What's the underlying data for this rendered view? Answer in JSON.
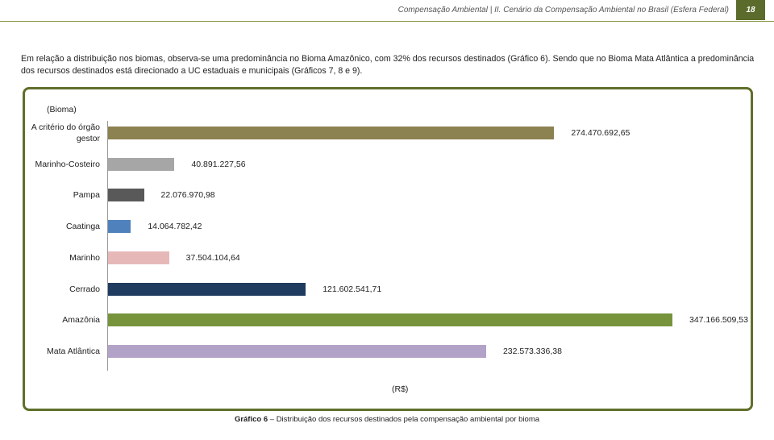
{
  "header": {
    "title": "Compensação Ambiental | II. Cenário da Compensação Ambiental no Brasil (Esfera Federal)",
    "page": "18"
  },
  "paragraph": "Em relação a distribuição nos biomas, observa-se uma predominância no Bioma Amazônico, com 32% dos recursos destinados (Gráfico 6). Sendo que no Bioma Mata Atlântica a predominância dos recursos destinados está direcionado a UC estaduais e municipais (Gráficos 7, 8 e 9).",
  "chart_data": {
    "type": "bar",
    "orientation": "horizontal",
    "y_label": "(Bioma)",
    "x_label": "(R$)",
    "categories": [
      "A critério do órgão gestor",
      "Marinho-Costeiro",
      "Pampa",
      "Caatinga",
      "Marinho",
      "Cerrado",
      "Amazônia",
      "Mata Atlântica"
    ],
    "values": [
      274470692.65,
      40891227.56,
      22076970.98,
      14064782.42,
      37504104.64,
      121602541.71,
      347166509.53,
      232573336.38
    ],
    "value_labels": [
      "274.470.692,65",
      "40.891.227,56",
      "22.076.970,98",
      "14.064.782,42",
      "37.504.104,64",
      "121.602.541,71",
      "347.166.509,53",
      "232.573.336,38"
    ],
    "colors": [
      "#8c8150",
      "#a6a6a6",
      "#595959",
      "#4f81bd",
      "#e6b9b8",
      "#1f3b5f",
      "#77933c",
      "#b3a2c7"
    ]
  },
  "caption": {
    "label": "Gráfico 6",
    "text": "– Distribuição dos recursos destinados pela compensação ambiental por bioma"
  }
}
